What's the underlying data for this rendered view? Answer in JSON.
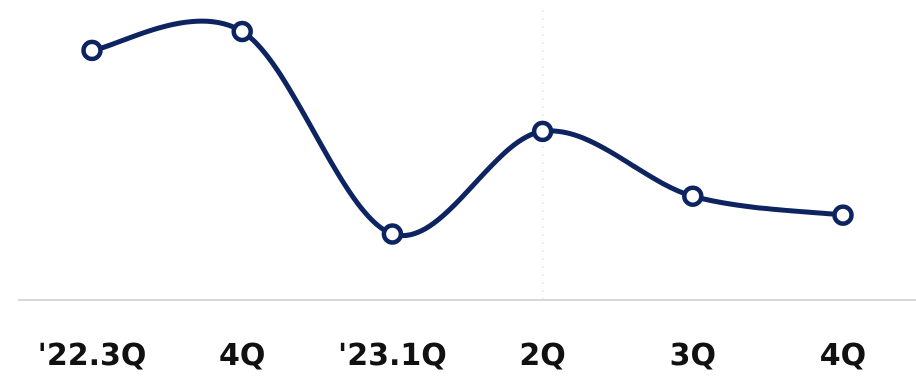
{
  "chart_data": {
    "type": "line",
    "categories": [
      "'22.3Q",
      "4Q",
      "'23.1Q",
      "2Q",
      "3Q",
      "4Q"
    ],
    "values": [
      88,
      95,
      20,
      58,
      34,
      27
    ],
    "ylim": [
      0,
      100
    ],
    "grid": false,
    "colors": {
      "line": "#0d2461",
      "marker_fill": "#ffffff",
      "marker_stroke": "#0d2461",
      "axis": "#d9d9d9",
      "vertical_guide": "#e3e3e3",
      "text": "#111111"
    }
  }
}
